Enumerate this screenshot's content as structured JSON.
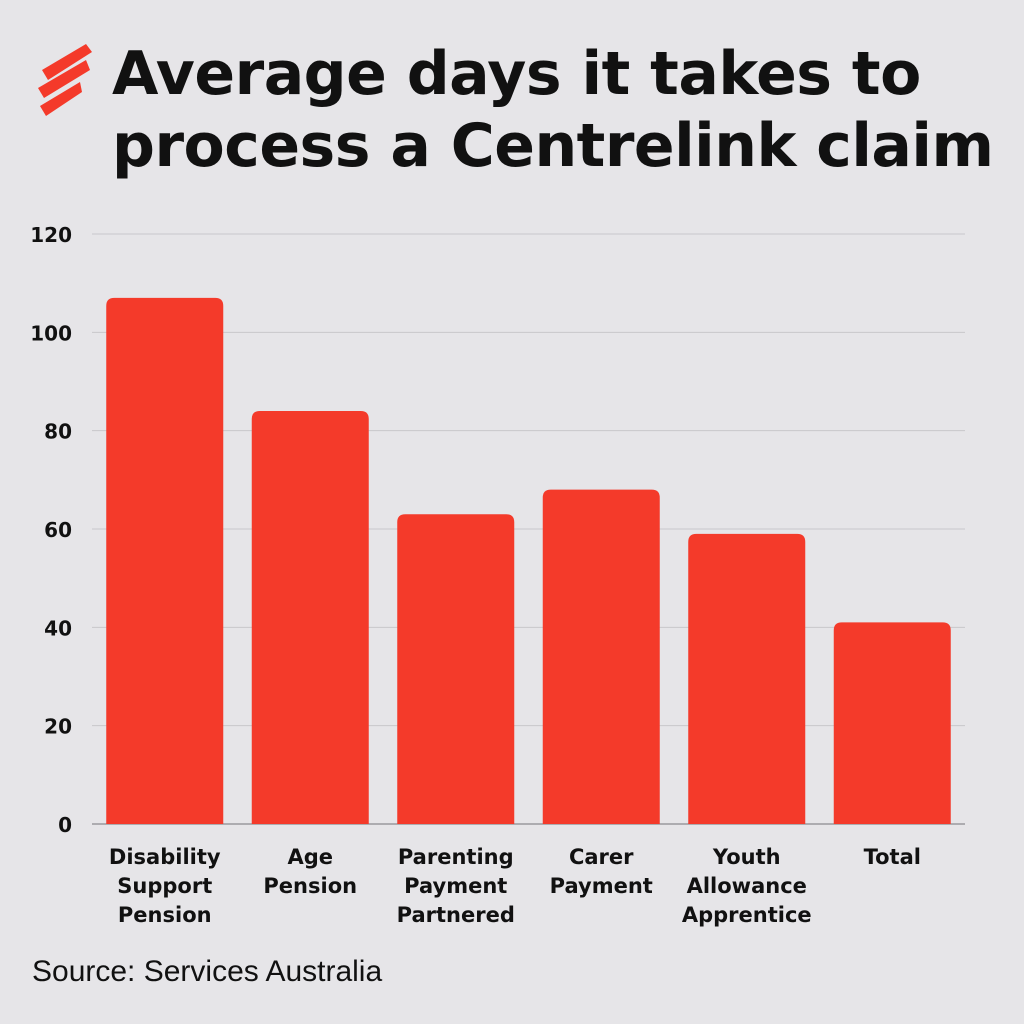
{
  "header": {
    "title_line1": "Average days it takes to",
    "title_line2": "process a Centrelink claim",
    "logo_icon": "sbs-sunburst-icon"
  },
  "footer": {
    "source": "Source: Services Australia"
  },
  "colors": {
    "bar": "#f43a2a",
    "background": "#e6e5e8",
    "text": "#111111",
    "grid": "#c8c7cb"
  },
  "chart_data": {
    "type": "bar",
    "title": "Average days it takes to process a Centrelink claim",
    "categories": [
      [
        "Disability",
        "Support",
        "Pension"
      ],
      [
        "Age",
        "Pension"
      ],
      [
        "Parenting",
        "Payment",
        "Partnered"
      ],
      [
        "Carer",
        "Payment"
      ],
      [
        "Youth",
        "Allowance",
        "Apprentice"
      ],
      [
        "Total"
      ]
    ],
    "values": [
      107,
      84,
      63,
      68,
      59,
      41
    ],
    "ylim": [
      0,
      120
    ],
    "yticks": [
      0,
      20,
      40,
      60,
      80,
      100,
      120
    ],
    "grid": true,
    "xlabel": "",
    "ylabel": ""
  }
}
